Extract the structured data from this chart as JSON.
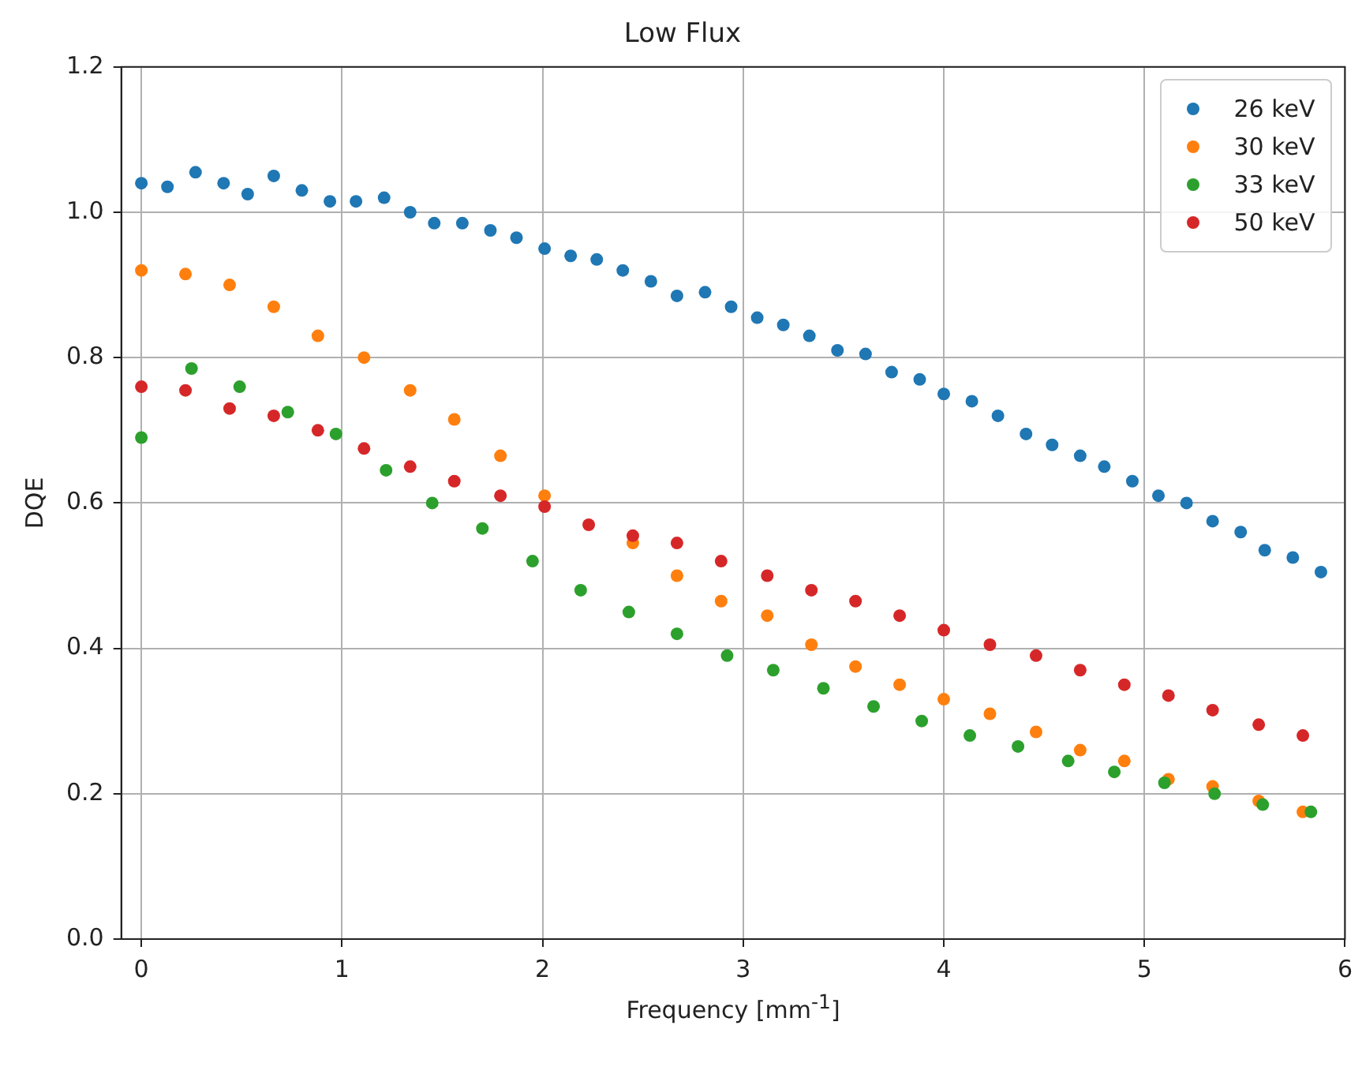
{
  "chart_data": {
    "type": "scatter",
    "title": "Low Flux",
    "xlabel": "Frequency [mm$^{-1}$]",
    "ylabel": "DQE",
    "xlim": [
      -0.1,
      6
    ],
    "xticks": [
      0,
      1,
      2,
      3,
      4,
      5,
      6
    ],
    "ylim": [
      0,
      1.2
    ],
    "yticks": [
      {
        "value": 0,
        "label": "0.0"
      },
      {
        "value": 0.2,
        "label": "0.2"
      },
      {
        "value": 0.4,
        "label": "0.4"
      },
      {
        "value": 0.6,
        "label": "0.6"
      },
      {
        "value": 0.8,
        "label": "0.8"
      },
      {
        "value": 1.0,
        "label": "1.0"
      },
      {
        "value": 1.2,
        "label": "1.2"
      }
    ],
    "grid": true,
    "legend": "top right",
    "marker": "circle",
    "series": [
      {
        "name": "26 keV",
        "color": "#1f77b4",
        "x": [
          0,
          0.13,
          0.27,
          0.41,
          0.53,
          0.66,
          0.8,
          0.94,
          1.07,
          1.21,
          1.34,
          1.46,
          1.6,
          1.74,
          1.87,
          2.01,
          2.14,
          2.27,
          2.4,
          2.54,
          2.67,
          2.81,
          2.94,
          3.07,
          3.2,
          3.33,
          3.47,
          3.61,
          3.74,
          3.88,
          4.0,
          4.14,
          4.27,
          4.41,
          4.54,
          4.68,
          4.8,
          4.94,
          5.07,
          5.21,
          5.34,
          5.48,
          5.6,
          5.74,
          5.88
        ],
        "values": [
          1.04,
          1.035,
          1.055,
          1.04,
          1.025,
          1.05,
          1.03,
          1.015,
          1.015,
          1.02,
          1.0,
          0.985,
          0.985,
          0.975,
          0.965,
          0.95,
          0.94,
          0.935,
          0.92,
          0.905,
          0.885,
          0.89,
          0.87,
          0.855,
          0.845,
          0.83,
          0.81,
          0.805,
          0.78,
          0.77,
          0.75,
          0.74,
          0.72,
          0.695,
          0.68,
          0.665,
          0.65,
          0.63,
          0.61,
          0.6,
          0.575,
          0.56,
          0.535,
          0.525,
          0.505
        ]
      },
      {
        "name": "30 keV",
        "color": "#ff7f0e",
        "x": [
          0,
          0.22,
          0.44,
          0.66,
          0.88,
          1.11,
          1.34,
          1.56,
          1.79,
          2.01,
          2.23,
          2.45,
          2.67,
          2.89,
          3.12,
          3.34,
          3.56,
          3.78,
          4.0,
          4.23,
          4.46,
          4.68,
          4.9,
          5.12,
          5.34,
          5.57,
          5.79
        ],
        "values": [
          0.92,
          0.915,
          0.9,
          0.87,
          0.83,
          0.8,
          0.755,
          0.715,
          0.665,
          0.61,
          null,
          0.545,
          0.5,
          0.465,
          0.445,
          0.405,
          0.375,
          0.35,
          0.33,
          0.31,
          0.285,
          0.26,
          0.245,
          0.22,
          0.21,
          0.19,
          0.175
        ]
      },
      {
        "name": "33 keV",
        "color": "#2ca02c",
        "x": [
          0,
          0.25,
          0.49,
          0.73,
          0.97,
          1.22,
          1.45,
          1.7,
          1.95,
          2.19,
          2.43,
          2.67,
          2.92,
          3.15,
          3.4,
          3.65,
          3.89,
          4.13,
          4.37,
          4.62,
          4.85,
          5.1,
          5.35,
          5.59,
          5.83
        ],
        "values": [
          0.69,
          0.785,
          0.76,
          0.725,
          0.695,
          0.645,
          0.6,
          0.565,
          0.52,
          0.48,
          0.45,
          0.42,
          0.39,
          0.37,
          0.345,
          0.32,
          0.3,
          0.28,
          0.265,
          0.245,
          0.23,
          0.215,
          0.2,
          0.185,
          0.175
        ]
      },
      {
        "name": "50 keV",
        "color": "#d62728",
        "x": [
          0,
          0.22,
          0.44,
          0.66,
          0.88,
          1.11,
          1.34,
          1.56,
          1.79,
          2.01,
          2.23,
          2.45,
          2.67,
          2.89,
          3.12,
          3.34,
          3.56,
          3.78,
          4.0,
          4.23,
          4.46,
          4.68,
          4.9,
          5.12,
          5.34,
          5.57,
          5.79
        ],
        "values": [
          0.76,
          0.755,
          0.73,
          0.72,
          0.7,
          0.675,
          0.65,
          0.63,
          0.61,
          0.595,
          0.57,
          0.555,
          0.545,
          0.52,
          0.5,
          0.48,
          0.465,
          0.445,
          0.425,
          0.405,
          0.39,
          0.37,
          0.35,
          0.335,
          0.315,
          0.295,
          0.28
        ]
      }
    ]
  }
}
